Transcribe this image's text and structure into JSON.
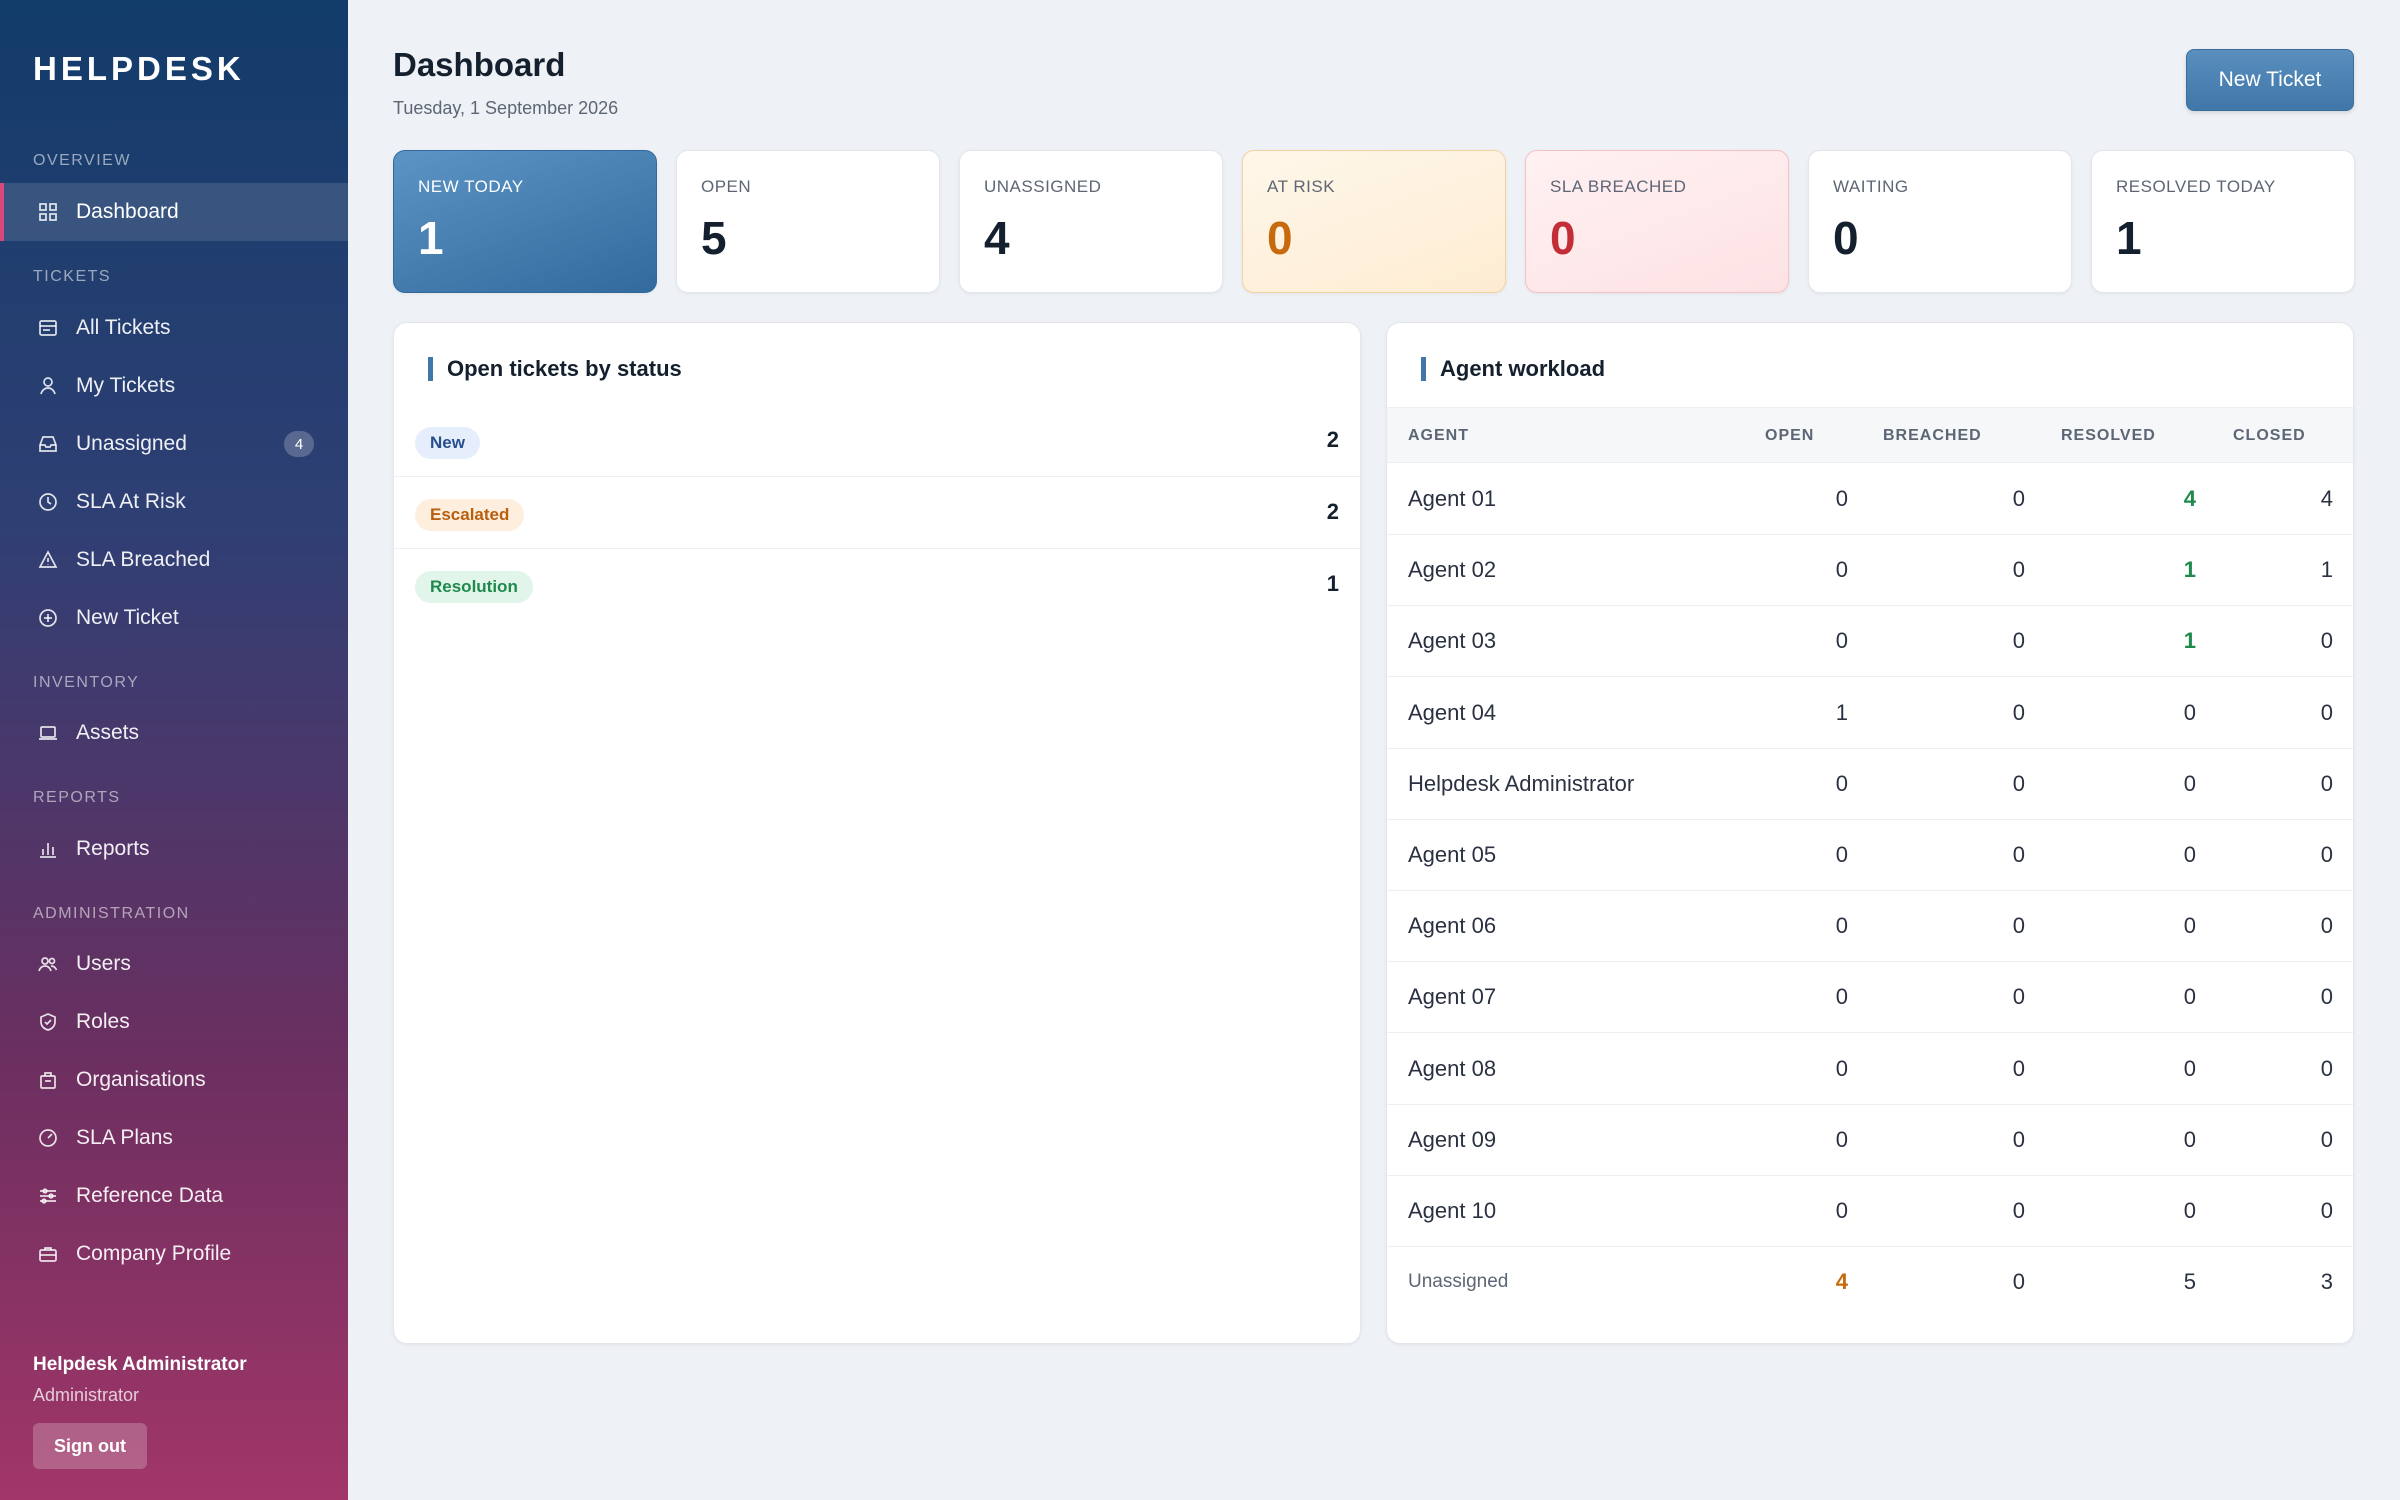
{
  "brand": "HELPDESK",
  "sidebar": {
    "sections": [
      {
        "title": "OVERVIEW",
        "items": [
          {
            "label": "Dashboard",
            "icon": "grid-icon",
            "active": true
          }
        ]
      },
      {
        "title": "TICKETS",
        "items": [
          {
            "label": "All Tickets",
            "icon": "ticket-icon"
          },
          {
            "label": "My Tickets",
            "icon": "user-icon"
          },
          {
            "label": "Unassigned",
            "icon": "inbox-icon",
            "badge": "4"
          },
          {
            "label": "SLA At Risk",
            "icon": "clock-icon"
          },
          {
            "label": "SLA Breached",
            "icon": "warning-icon"
          },
          {
            "label": "New Ticket",
            "icon": "plus-circle-icon"
          }
        ]
      },
      {
        "title": "INVENTORY",
        "items": [
          {
            "label": "Assets",
            "icon": "laptop-icon"
          }
        ]
      },
      {
        "title": "REPORTS",
        "items": [
          {
            "label": "Reports",
            "icon": "bar-chart-icon"
          }
        ]
      },
      {
        "title": "ADMINISTRATION",
        "items": [
          {
            "label": "Users",
            "icon": "users-icon"
          },
          {
            "label": "Roles",
            "icon": "shield-icon"
          },
          {
            "label": "Organisations",
            "icon": "building-icon"
          },
          {
            "label": "SLA Plans",
            "icon": "gauge-icon"
          },
          {
            "label": "Reference Data",
            "icon": "sliders-icon"
          },
          {
            "label": "Company Profile",
            "icon": "briefcase-icon"
          }
        ]
      }
    ],
    "user": {
      "name": "Helpdesk Administrator",
      "role": "Administrator",
      "signout_label": "Sign out"
    }
  },
  "header": {
    "title": "Dashboard",
    "date": "Tuesday, 1 September 2026",
    "new_ticket_label": "New Ticket"
  },
  "stats": [
    {
      "label": "NEW TODAY",
      "value": "1",
      "style": "primary"
    },
    {
      "label": "OPEN",
      "value": "5",
      "style": "default"
    },
    {
      "label": "UNASSIGNED",
      "value": "4",
      "style": "default"
    },
    {
      "label": "AT RISK",
      "value": "0",
      "style": "warn"
    },
    {
      "label": "SLA BREACHED",
      "value": "0",
      "style": "danger"
    },
    {
      "label": "WAITING",
      "value": "0",
      "style": "default"
    },
    {
      "label": "RESOLVED TODAY",
      "value": "1",
      "style": "default"
    }
  ],
  "status_panel": {
    "title": "Open tickets by status",
    "rows": [
      {
        "status": "New",
        "count": "2",
        "style": "new"
      },
      {
        "status": "Escalated",
        "count": "2",
        "style": "esc"
      },
      {
        "status": "Resolution",
        "count": "1",
        "style": "res"
      }
    ]
  },
  "workload_panel": {
    "title": "Agent workload",
    "columns": [
      "AGENT",
      "OPEN",
      "BREACHED",
      "RESOLVED",
      "CLOSED"
    ],
    "rows": [
      {
        "agent": "Agent 01",
        "open": "0",
        "breached": "0",
        "resolved": "4",
        "closed": "4"
      },
      {
        "agent": "Agent 02",
        "open": "0",
        "breached": "0",
        "resolved": "1",
        "closed": "1"
      },
      {
        "agent": "Agent 03",
        "open": "0",
        "breached": "0",
        "resolved": "1",
        "closed": "0"
      },
      {
        "agent": "Agent 04",
        "open": "1",
        "breached": "0",
        "resolved": "0",
        "closed": "0"
      },
      {
        "agent": "Helpdesk Administrator",
        "open": "0",
        "breached": "0",
        "resolved": "0",
        "closed": "0"
      },
      {
        "agent": "Agent 05",
        "open": "0",
        "breached": "0",
        "resolved": "0",
        "closed": "0"
      },
      {
        "agent": "Agent 06",
        "open": "0",
        "breached": "0",
        "resolved": "0",
        "closed": "0"
      },
      {
        "agent": "Agent 07",
        "open": "0",
        "breached": "0",
        "resolved": "0",
        "closed": "0"
      },
      {
        "agent": "Agent 08",
        "open": "0",
        "breached": "0",
        "resolved": "0",
        "closed": "0"
      },
      {
        "agent": "Agent 09",
        "open": "0",
        "breached": "0",
        "resolved": "0",
        "closed": "0"
      },
      {
        "agent": "Agent 10",
        "open": "0",
        "breached": "0",
        "resolved": "0",
        "closed": "0"
      },
      {
        "agent": "Unassigned",
        "open": "4",
        "breached": "0",
        "resolved": "5",
        "closed": "3"
      }
    ]
  },
  "colors": {
    "accent": "#3f77a8",
    "warn": "#c76a0e",
    "danger": "#c22d36",
    "success": "#1f8a4c"
  }
}
